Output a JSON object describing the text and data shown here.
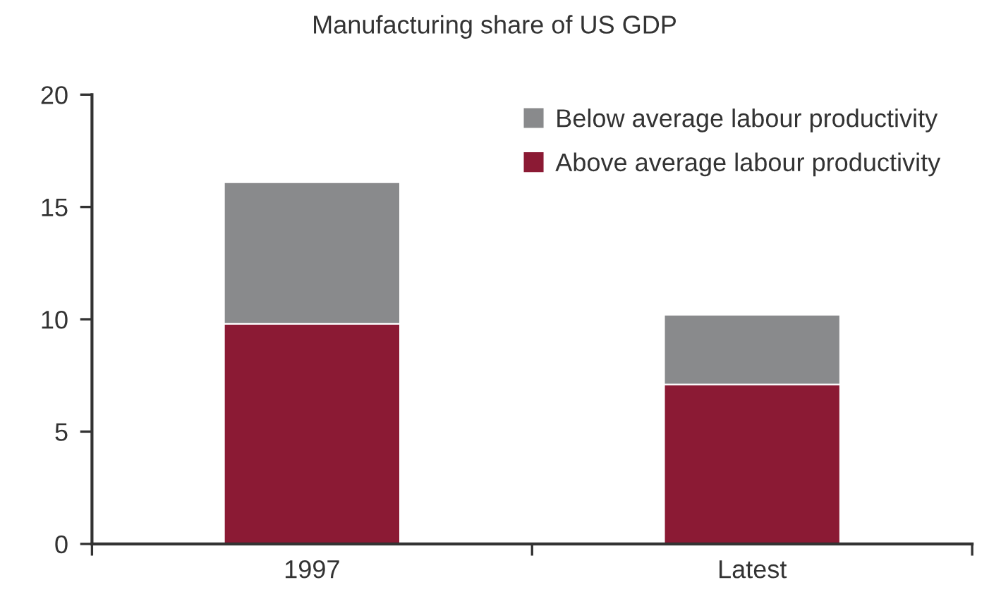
{
  "chart_data": {
    "type": "bar",
    "title": "Manufacturing share of US GDP",
    "categories": [
      "1997",
      "Latest"
    ],
    "stacked": true,
    "series": [
      {
        "name": "Above average labour productivity",
        "color": "#8b1a34",
        "values": [
          9.8,
          7.1
        ]
      },
      {
        "name": "Below average labour productivity",
        "color": "#898a8c",
        "values": [
          6.3,
          3.1
        ]
      }
    ],
    "ylim": [
      0,
      20
    ],
    "yticks": [
      0,
      5,
      10,
      15,
      20
    ],
    "grid": false,
    "legend": "top right"
  }
}
